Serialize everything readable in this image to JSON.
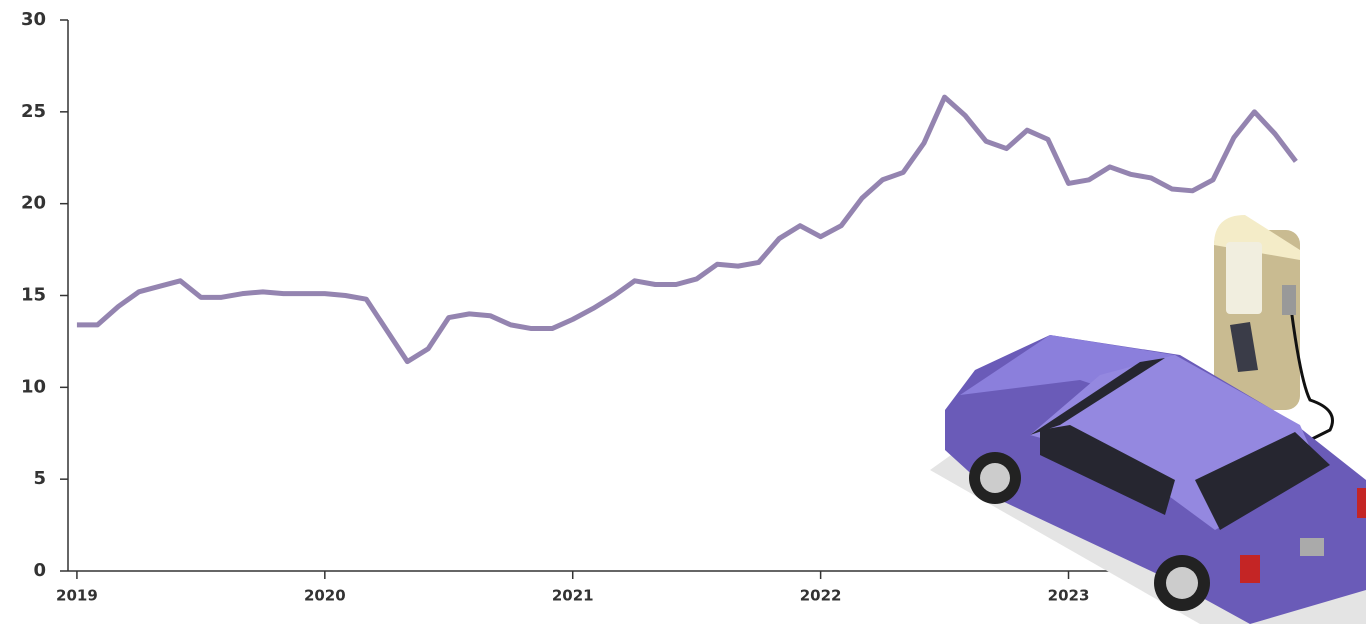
{
  "chart_data": {
    "type": "line",
    "x": [
      2019,
      2019.083,
      2019.167,
      2019.25,
      2019.333,
      2019.417,
      2019.5,
      2019.583,
      2019.667,
      2019.75,
      2019.833,
      2019.917,
      2020,
      2020.083,
      2020.167,
      2020.25,
      2020.333,
      2020.417,
      2020.5,
      2020.583,
      2020.667,
      2020.75,
      2020.833,
      2020.917,
      2021,
      2021.083,
      2021.167,
      2021.25,
      2021.333,
      2021.417,
      2021.5,
      2021.583,
      2021.667,
      2021.75,
      2021.833,
      2021.917,
      2022,
      2022.083,
      2022.167,
      2022.25,
      2022.333,
      2022.417,
      2022.5,
      2022.583,
      2022.667,
      2022.75,
      2022.833,
      2022.917,
      2023,
      2023.083,
      2023.167,
      2023.25,
      2023.333,
      2023.417,
      2023.5,
      2023.583,
      2023.667,
      2023.75,
      2023.833,
      2023.917
    ],
    "series": [
      {
        "color": "#9484b0",
        "values": [
          13.4,
          13.4,
          14.4,
          15.2,
          15.5,
          15.8,
          14.9,
          14.9,
          15.1,
          15.2,
          15.1,
          15.1,
          15.1,
          15.0,
          14.8,
          13.1,
          11.4,
          12.1,
          13.8,
          14.0,
          13.9,
          13.4,
          13.2,
          13.2,
          13.7,
          14.3,
          15.0,
          15.8,
          15.6,
          15.6,
          15.9,
          16.7,
          16.6,
          16.8,
          18.1,
          18.8,
          18.2,
          18.8,
          20.3,
          21.3,
          21.7,
          23.3,
          25.8,
          24.8,
          23.4,
          23.0,
          24.0,
          23.5,
          21.1,
          21.3,
          22.0,
          21.6,
          21.4,
          20.8,
          20.7,
          21.3,
          23.6,
          25.0,
          23.8,
          22.3
        ]
      }
    ],
    "xlim": [
      2018.964,
      2024.2
    ],
    "xticks": [
      2019,
      2020,
      2021,
      2022,
      2023
    ],
    "ylim": [
      0,
      30
    ],
    "yticks": [
      0,
      5,
      10,
      15,
      20,
      25,
      30
    ]
  }
}
